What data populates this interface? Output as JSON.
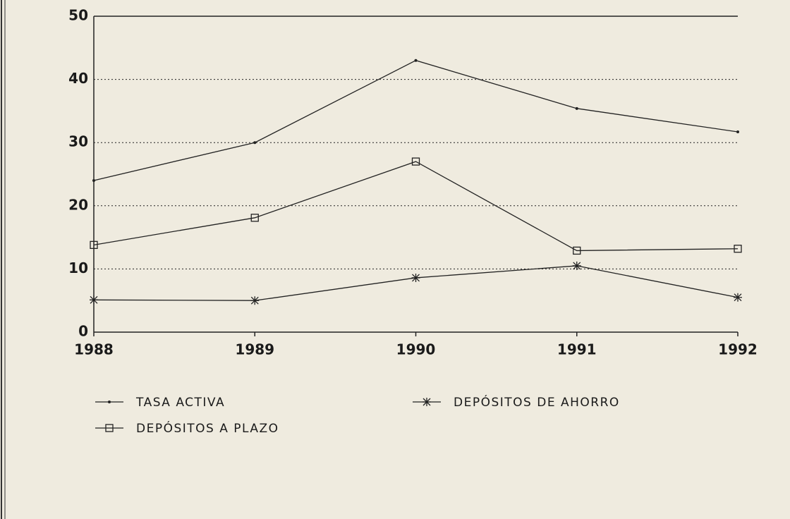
{
  "chart_data": {
    "type": "line",
    "x": [
      1988,
      1989,
      1990,
      1991,
      1992
    ],
    "xlim": [
      1988,
      1992
    ],
    "xticks": [
      1988,
      1989,
      1990,
      1991,
      1992
    ],
    "ylim": [
      0,
      50
    ],
    "yticks": [
      0,
      10,
      20,
      30,
      40,
      50
    ],
    "grid": true,
    "legend": "bottom",
    "series": [
      {
        "name": "TASA ACTIVA",
        "color": "#222222",
        "marker": "dot",
        "values": [
          24.0,
          30.0,
          43.0,
          35.4,
          31.7
        ]
      },
      {
        "name": "DEPÓSITOS A PLAZO",
        "color": "#222222",
        "marker": "square",
        "values": [
          13.8,
          18.1,
          27.0,
          12.9,
          13.2
        ]
      },
      {
        "name": "DEPÓSITOS DE AHORRO",
        "color": "#222222",
        "marker": "asterisk",
        "values": [
          5.1,
          5.0,
          8.6,
          10.5,
          5.5
        ]
      }
    ]
  }
}
